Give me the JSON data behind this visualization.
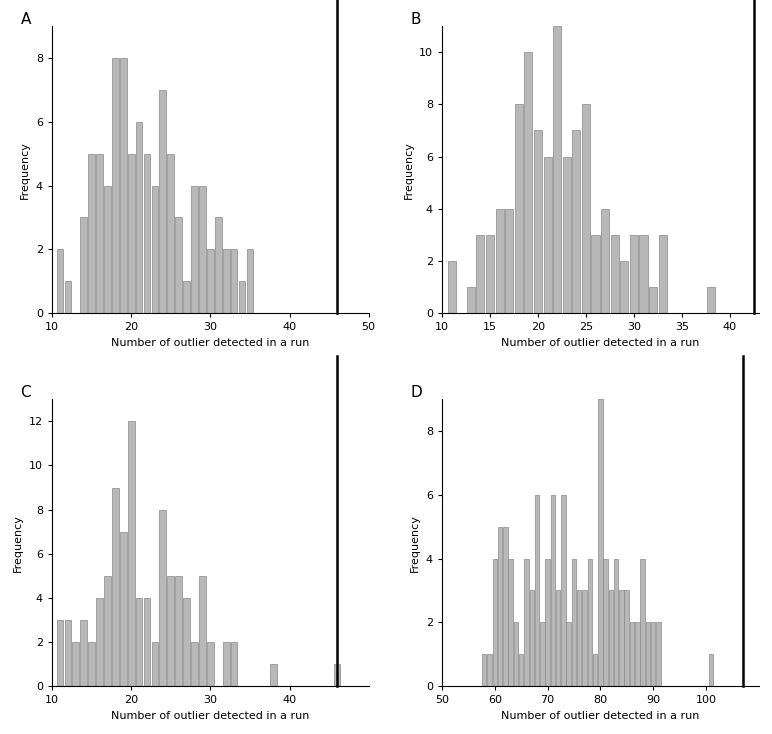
{
  "panel_A": {
    "label": "A",
    "xlim": [
      10,
      50
    ],
    "ylim": [
      0,
      9
    ],
    "xticks": [
      10,
      20,
      30,
      40,
      50
    ],
    "yticks": [
      0,
      2,
      4,
      6,
      8
    ],
    "vline_x": 46,
    "bar_color": "#b8b8b8",
    "edge_color": "#888888",
    "xlabel": "Number of outlier detected in a run",
    "ylabel": "Frequency",
    "bins": [
      11,
      12,
      13,
      14,
      15,
      16,
      17,
      18,
      19,
      20,
      21,
      22,
      23,
      24,
      25,
      26,
      27,
      28,
      29,
      30,
      31,
      32,
      33,
      34,
      35
    ],
    "freqs": [
      2,
      1,
      0,
      3,
      5,
      5,
      4,
      8,
      8,
      5,
      6,
      5,
      4,
      7,
      5,
      3,
      1,
      4,
      4,
      2,
      3,
      2,
      2,
      1,
      2
    ]
  },
  "panel_B": {
    "label": "B",
    "xlim": [
      10,
      43
    ],
    "ylim": [
      0,
      11
    ],
    "xticks": [
      10,
      15,
      20,
      25,
      30,
      35,
      40
    ],
    "yticks": [
      0,
      2,
      4,
      6,
      8,
      10
    ],
    "vline_x": 42.5,
    "bar_color": "#b8b8b8",
    "edge_color": "#888888",
    "xlabel": "Number of outlier detected in a run",
    "ylabel": "Frequency",
    "bins": [
      11,
      12,
      13,
      14,
      15,
      16,
      17,
      18,
      19,
      20,
      21,
      22,
      23,
      24,
      25,
      26,
      27,
      28,
      29,
      30,
      31,
      32,
      33,
      38
    ],
    "freqs": [
      2,
      0,
      1,
      3,
      3,
      4,
      4,
      8,
      10,
      7,
      6,
      11,
      6,
      7,
      8,
      3,
      4,
      3,
      2,
      3,
      3,
      1,
      3,
      1
    ]
  },
  "panel_C": {
    "label": "C",
    "xlim": [
      10,
      50
    ],
    "ylim": [
      0,
      13
    ],
    "xticks": [
      10,
      20,
      30,
      40
    ],
    "yticks": [
      0,
      2,
      4,
      6,
      8,
      10,
      12
    ],
    "vline_x": 46,
    "bar_color": "#b8b8b8",
    "edge_color": "#888888",
    "xlabel": "Number of outlier detected in a run",
    "ylabel": "Frequency",
    "bins": [
      11,
      12,
      13,
      14,
      15,
      16,
      17,
      18,
      19,
      20,
      21,
      22,
      23,
      24,
      25,
      26,
      27,
      28,
      29,
      30,
      31,
      32,
      33,
      38,
      46
    ],
    "freqs": [
      3,
      3,
      2,
      3,
      2,
      4,
      5,
      9,
      7,
      12,
      4,
      4,
      2,
      8,
      5,
      5,
      4,
      2,
      5,
      2,
      0,
      2,
      2,
      1,
      1
    ]
  },
  "panel_D": {
    "label": "D",
    "xlim": [
      50,
      110
    ],
    "ylim": [
      0,
      9
    ],
    "xticks": [
      50,
      60,
      70,
      80,
      90,
      100
    ],
    "yticks": [
      0,
      2,
      4,
      6,
      8
    ],
    "vline_x": 107,
    "bar_color": "#b8b8b8",
    "edge_color": "#888888",
    "xlabel": "Number of outlier detected in a run",
    "ylabel": "Frequency",
    "bins": [
      58,
      59,
      60,
      61,
      62,
      63,
      64,
      65,
      66,
      67,
      68,
      69,
      70,
      71,
      72,
      73,
      74,
      75,
      76,
      77,
      78,
      79,
      80,
      81,
      82,
      83,
      84,
      85,
      86,
      87,
      88,
      89,
      90,
      91,
      101
    ],
    "freqs": [
      1,
      1,
      4,
      5,
      5,
      4,
      2,
      1,
      4,
      3,
      6,
      2,
      4,
      6,
      3,
      6,
      2,
      4,
      3,
      3,
      4,
      1,
      9,
      4,
      3,
      4,
      3,
      3,
      2,
      2,
      4,
      2,
      2,
      2,
      1
    ]
  },
  "background_color": "#ffffff",
  "label_fontsize": 11,
  "axis_fontsize": 8,
  "tick_fontsize": 8
}
